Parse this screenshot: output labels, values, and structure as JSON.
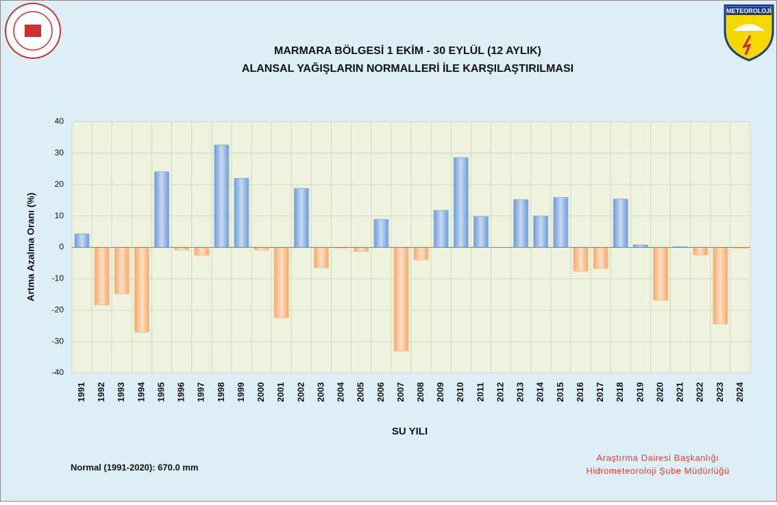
{
  "chart_data": {
    "type": "bar",
    "title": [
      "MARMARA BÖLGESİ  1 EKİM - 30 EYLÜL (12 AYLIK)",
      "ALANSAL YAĞIŞLARIN NORMALLERİ İLE KARŞILAŞTIRILMASI"
    ],
    "y_label": "Artma Azalma Oranı (%)",
    "x_label": "SU YILI",
    "note": "Normal (1991-2020):  670.0 mm",
    "credits": [
      "Araştırma Dairesi Başkanlığı",
      "Hidrometeoroloji Şube Müdürlüğü"
    ],
    "logo_text": "METEOROLOJİ",
    "categories": [
      "1991",
      "1992",
      "1993",
      "1994",
      "1995",
      "1996",
      "1997",
      "1998",
      "1999",
      "2000",
      "2001",
      "2002",
      "2003",
      "2004",
      "2005",
      "2006",
      "2007",
      "2008",
      "2009",
      "2010",
      "2011",
      "2012",
      "2013",
      "2014",
      "2015",
      "2016",
      "2017",
      "2018",
      "2019",
      "2020",
      "2021",
      "2022",
      "2023",
      "2024"
    ],
    "values": [
      4.3,
      -18.3,
      -14.8,
      -27,
      24.1,
      -0.8,
      -2.5,
      32.6,
      22,
      -0.8,
      -22.4,
      18.8,
      -6.5,
      -0.2,
      -1.3,
      8.9,
      -33,
      -4,
      11.8,
      28.6,
      9.8,
      0,
      15.2,
      10,
      15.9,
      -7.6,
      -6.7,
      15.4,
      0.8,
      -16.8,
      0.2,
      -2.4,
      -24.4,
      -0.3
    ],
    "positive_color": "#8db4e3",
    "negative_color": "#fac08f",
    "ylim": [
      -40,
      40
    ],
    "yticks": [
      -40,
      -30,
      -20,
      -10,
      0,
      10,
      20,
      30,
      40
    ],
    "grid": true
  }
}
